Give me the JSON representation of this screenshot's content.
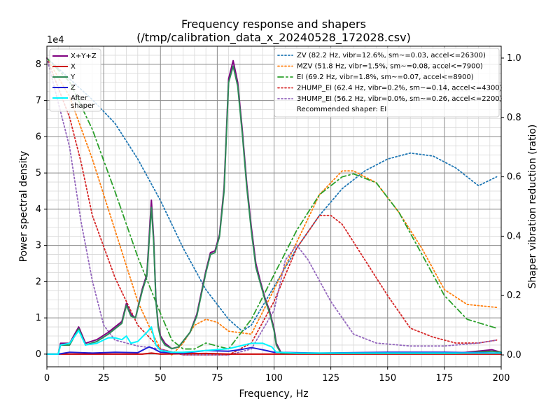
{
  "chart_data": {
    "type": "line",
    "title": [
      "Frequency response and shapers",
      "(/tmp/calibration_data_x_20240528_172028.csv)"
    ],
    "xlabel": "Frequency, Hz",
    "ylabel": "Power spectral density",
    "y2label": "Shaper vibration reduction (ratio)",
    "y_multiplier_label": "1e4",
    "xlim": [
      0,
      200
    ],
    "ylim": [
      -0.35,
      8.5
    ],
    "y_scale_factor": 10000,
    "y2lim": [
      -0.04,
      1.04
    ],
    "x_ticks": [
      0,
      25,
      50,
      75,
      100,
      125,
      150,
      175,
      200
    ],
    "y_ticks": [
      0,
      1,
      2,
      3,
      4,
      5,
      6,
      7,
      8
    ],
    "y2_ticks": [
      0.0,
      0.2,
      0.4,
      0.6,
      0.8,
      1.0
    ],
    "grid": "major and minor",
    "left_legend_position": "top-left",
    "right_legend_position": "top-right",
    "recommended_shaper_text": "Recommended shaper: EI",
    "psd_series": [
      {
        "name": "X+Y+Z",
        "color": "#800080",
        "width": 2,
        "dash": "solid",
        "points": [
          [
            0,
            0
          ],
          [
            5,
            0
          ],
          [
            6,
            0.3
          ],
          [
            10,
            0.3
          ],
          [
            14,
            0.75
          ],
          [
            17,
            0.3
          ],
          [
            22,
            0.4
          ],
          [
            27,
            0.6
          ],
          [
            30,
            0.75
          ],
          [
            33,
            0.9
          ],
          [
            35,
            1.4
          ],
          [
            37,
            1.1
          ],
          [
            39,
            1.0
          ],
          [
            42,
            1.8
          ],
          [
            44,
            2.2
          ],
          [
            46,
            4.25
          ],
          [
            47,
            3.2
          ],
          [
            48,
            1.5
          ],
          [
            49,
            0.8
          ],
          [
            50,
            0.5
          ],
          [
            52,
            0.3
          ],
          [
            55,
            0.15
          ],
          [
            58,
            0.2
          ],
          [
            63,
            0.6
          ],
          [
            66,
            1.1
          ],
          [
            70,
            2.3
          ],
          [
            72,
            2.8
          ],
          [
            74,
            2.85
          ],
          [
            76,
            3.3
          ],
          [
            78,
            4.6
          ],
          [
            80,
            7.6
          ],
          [
            82,
            8.1
          ],
          [
            84,
            7.5
          ],
          [
            86,
            6.2
          ],
          [
            88,
            4.7
          ],
          [
            90,
            3.5
          ],
          [
            92,
            2.5
          ],
          [
            94,
            2.0
          ],
          [
            96,
            1.55
          ],
          [
            98,
            1.2
          ],
          [
            100,
            0.7
          ],
          [
            101,
            0.3
          ],
          [
            103,
            0.05
          ],
          [
            110,
            0.02
          ],
          [
            130,
            0.02
          ],
          [
            160,
            0.02
          ],
          [
            180,
            0.02
          ],
          [
            196,
            0.12
          ],
          [
            200,
            0.05
          ]
        ]
      },
      {
        "name": "X",
        "color": "#cc0000",
        "width": 2,
        "dash": "solid",
        "points": [
          [
            0,
            0
          ],
          [
            5,
            0
          ],
          [
            25,
            0
          ],
          [
            42,
            0
          ],
          [
            46,
            0.03
          ],
          [
            50,
            0
          ],
          [
            70,
            0.02
          ],
          [
            80,
            0
          ],
          [
            100,
            0
          ],
          [
            200,
            0
          ]
        ]
      },
      {
        "name": "Y",
        "color": "#2e8b57",
        "width": 2,
        "dash": "solid",
        "points": [
          [
            0,
            0
          ],
          [
            5,
            0
          ],
          [
            6,
            0.25
          ],
          [
            10,
            0.25
          ],
          [
            14,
            0.7
          ],
          [
            17,
            0.25
          ],
          [
            22,
            0.35
          ],
          [
            27,
            0.55
          ],
          [
            30,
            0.7
          ],
          [
            33,
            0.85
          ],
          [
            35,
            1.35
          ],
          [
            37,
            1.05
          ],
          [
            39,
            1.0
          ],
          [
            42,
            1.75
          ],
          [
            44,
            2.15
          ],
          [
            46,
            4.05
          ],
          [
            47,
            3.1
          ],
          [
            48,
            1.45
          ],
          [
            49,
            0.75
          ],
          [
            50,
            0.45
          ],
          [
            52,
            0.25
          ],
          [
            55,
            0.15
          ],
          [
            58,
            0.2
          ],
          [
            63,
            0.6
          ],
          [
            66,
            1.05
          ],
          [
            70,
            2.25
          ],
          [
            72,
            2.75
          ],
          [
            74,
            2.8
          ],
          [
            76,
            3.25
          ],
          [
            78,
            4.5
          ],
          [
            80,
            7.5
          ],
          [
            82,
            7.95
          ],
          [
            84,
            7.4
          ],
          [
            86,
            6.1
          ],
          [
            88,
            4.6
          ],
          [
            90,
            3.4
          ],
          [
            92,
            2.4
          ],
          [
            94,
            1.95
          ],
          [
            96,
            1.5
          ],
          [
            98,
            1.15
          ],
          [
            100,
            0.65
          ],
          [
            101,
            0.25
          ],
          [
            103,
            0.03
          ],
          [
            110,
            0.02
          ],
          [
            130,
            0.02
          ],
          [
            160,
            0.02
          ],
          [
            180,
            0.02
          ],
          [
            196,
            0.08
          ],
          [
            200,
            0.05
          ]
        ]
      },
      {
        "name": "Z",
        "color": "#1f1fd6",
        "width": 2,
        "dash": "solid",
        "points": [
          [
            0,
            0
          ],
          [
            5,
            0
          ],
          [
            10,
            0.05
          ],
          [
            20,
            0.03
          ],
          [
            30,
            0.05
          ],
          [
            40,
            0.04
          ],
          [
            45,
            0.2
          ],
          [
            47,
            0.15
          ],
          [
            50,
            0.05
          ],
          [
            60,
            0.03
          ],
          [
            70,
            0.1
          ],
          [
            80,
            0.08
          ],
          [
            85,
            0.12
          ],
          [
            90,
            0.18
          ],
          [
            95,
            0.12
          ],
          [
            100,
            0.05
          ],
          [
            120,
            0.03
          ],
          [
            150,
            0.05
          ],
          [
            175,
            0.05
          ],
          [
            200,
            0.03
          ]
        ]
      },
      {
        "name": "After\nshaper",
        "color": "#00f5ff",
        "width": 2,
        "dash": "solid",
        "points": [
          [
            0,
            0
          ],
          [
            5,
            0
          ],
          [
            6,
            0.25
          ],
          [
            10,
            0.3
          ],
          [
            14,
            0.65
          ],
          [
            17,
            0.25
          ],
          [
            22,
            0.3
          ],
          [
            27,
            0.45
          ],
          [
            30,
            0.45
          ],
          [
            33,
            0.4
          ],
          [
            35,
            0.5
          ],
          [
            37,
            0.3
          ],
          [
            40,
            0.35
          ],
          [
            44,
            0.6
          ],
          [
            46,
            0.75
          ],
          [
            48,
            0.25
          ],
          [
            50,
            0.1
          ],
          [
            55,
            0.05
          ],
          [
            60,
            0.05
          ],
          [
            70,
            0.1
          ],
          [
            80,
            0.15
          ],
          [
            90,
            0.3
          ],
          [
            95,
            0.3
          ],
          [
            99,
            0.2
          ],
          [
            101,
            0.05
          ],
          [
            110,
            0.03
          ],
          [
            150,
            0.03
          ],
          [
            200,
            0.03
          ]
        ]
      }
    ],
    "shaper_series": [
      {
        "name": "ZV (82.2 Hz, vibr=12.6%, sm~=0.03, accel<=26300)",
        "color": "#1f77b4",
        "width": 1.8,
        "dash": "2,3",
        "points": [
          [
            0,
            1.0
          ],
          [
            10,
            0.93
          ],
          [
            20,
            0.86
          ],
          [
            30,
            0.78
          ],
          [
            40,
            0.66
          ],
          [
            50,
            0.52
          ],
          [
            60,
            0.36
          ],
          [
            70,
            0.22
          ],
          [
            80,
            0.12
          ],
          [
            86,
            0.08
          ],
          [
            90,
            0.1
          ],
          [
            100,
            0.23
          ],
          [
            110,
            0.36
          ],
          [
            120,
            0.47
          ],
          [
            130,
            0.56
          ],
          [
            140,
            0.62
          ],
          [
            150,
            0.66
          ],
          [
            160,
            0.68
          ],
          [
            170,
            0.67
          ],
          [
            180,
            0.63
          ],
          [
            190,
            0.57
          ],
          [
            198,
            0.6
          ]
        ]
      },
      {
        "name": "MZV (51.8 Hz, vibr=1.5%, sm~=0.08, accel<=7900)",
        "color": "#ff7f0e",
        "width": 1.8,
        "dash": "2,3",
        "points": [
          [
            0,
            1.0
          ],
          [
            10,
            0.87
          ],
          [
            20,
            0.66
          ],
          [
            30,
            0.42
          ],
          [
            40,
            0.18
          ],
          [
            46,
            0.08
          ],
          [
            50,
            0.02
          ],
          [
            55,
            0.0
          ],
          [
            60,
            0.04
          ],
          [
            65,
            0.1
          ],
          [
            70,
            0.12
          ],
          [
            75,
            0.11
          ],
          [
            80,
            0.08
          ],
          [
            90,
            0.07
          ],
          [
            100,
            0.22
          ],
          [
            110,
            0.38
          ],
          [
            120,
            0.54
          ],
          [
            130,
            0.62
          ],
          [
            135,
            0.62
          ],
          [
            145,
            0.58
          ],
          [
            155,
            0.48
          ],
          [
            165,
            0.36
          ],
          [
            175,
            0.22
          ],
          [
            185,
            0.17
          ],
          [
            198,
            0.16
          ]
        ]
      },
      {
        "name": "EI (69.2 Hz, vibr=1.8%, sm~=0.07, accel<=8900)",
        "color": "#2ca02c",
        "width": 1.8,
        "dash": "8,4,2,4",
        "points": [
          [
            0,
            1.0
          ],
          [
            10,
            0.92
          ],
          [
            20,
            0.76
          ],
          [
            30,
            0.55
          ],
          [
            40,
            0.33
          ],
          [
            50,
            0.14
          ],
          [
            55,
            0.05
          ],
          [
            60,
            0.02
          ],
          [
            65,
            0.02
          ],
          [
            70,
            0.04
          ],
          [
            75,
            0.03
          ],
          [
            80,
            0.02
          ],
          [
            90,
            0.12
          ],
          [
            100,
            0.27
          ],
          [
            110,
            0.42
          ],
          [
            120,
            0.54
          ],
          [
            130,
            0.6
          ],
          [
            135,
            0.61
          ],
          [
            145,
            0.58
          ],
          [
            155,
            0.48
          ],
          [
            165,
            0.34
          ],
          [
            175,
            0.2
          ],
          [
            185,
            0.12
          ],
          [
            198,
            0.09
          ]
        ]
      },
      {
        "name": "2HUMP_EI (62.4 Hz, vibr=0.2%, sm~=0.14, accel<=4300)",
        "color": "#d62728",
        "width": 1.8,
        "dash": "2,3",
        "points": [
          [
            0,
            1.0
          ],
          [
            10,
            0.8
          ],
          [
            15,
            0.65
          ],
          [
            20,
            0.47
          ],
          [
            30,
            0.26
          ],
          [
            40,
            0.1
          ],
          [
            50,
            0.02
          ],
          [
            60,
            0.0
          ],
          [
            70,
            0.0
          ],
          [
            80,
            0.0
          ],
          [
            90,
            0.04
          ],
          [
            100,
            0.18
          ],
          [
            110,
            0.36
          ],
          [
            120,
            0.47
          ],
          [
            125,
            0.47
          ],
          [
            130,
            0.44
          ],
          [
            140,
            0.32
          ],
          [
            150,
            0.2
          ],
          [
            160,
            0.09
          ],
          [
            170,
            0.06
          ],
          [
            180,
            0.04
          ],
          [
            190,
            0.04
          ],
          [
            198,
            0.05
          ]
        ]
      },
      {
        "name": "3HUMP_EI (56.2 Hz, vibr=0.0%, sm~=0.26, accel<=2200)",
        "color": "#9467bd",
        "width": 1.8,
        "dash": "2,3",
        "points": [
          [
            0,
            1.0
          ],
          [
            10,
            0.7
          ],
          [
            15,
            0.45
          ],
          [
            20,
            0.25
          ],
          [
            25,
            0.1
          ],
          [
            30,
            0.05
          ],
          [
            35,
            0.04
          ],
          [
            40,
            0.03
          ],
          [
            50,
            0.02
          ],
          [
            60,
            0.0
          ],
          [
            70,
            0.0
          ],
          [
            80,
            0.0
          ],
          [
            90,
            0.02
          ],
          [
            100,
            0.15
          ],
          [
            105,
            0.32
          ],
          [
            110,
            0.37
          ],
          [
            115,
            0.32
          ],
          [
            125,
            0.18
          ],
          [
            135,
            0.07
          ],
          [
            145,
            0.04
          ],
          [
            160,
            0.03
          ],
          [
            175,
            0.03
          ],
          [
            190,
            0.04
          ],
          [
            198,
            0.05
          ]
        ]
      }
    ]
  }
}
